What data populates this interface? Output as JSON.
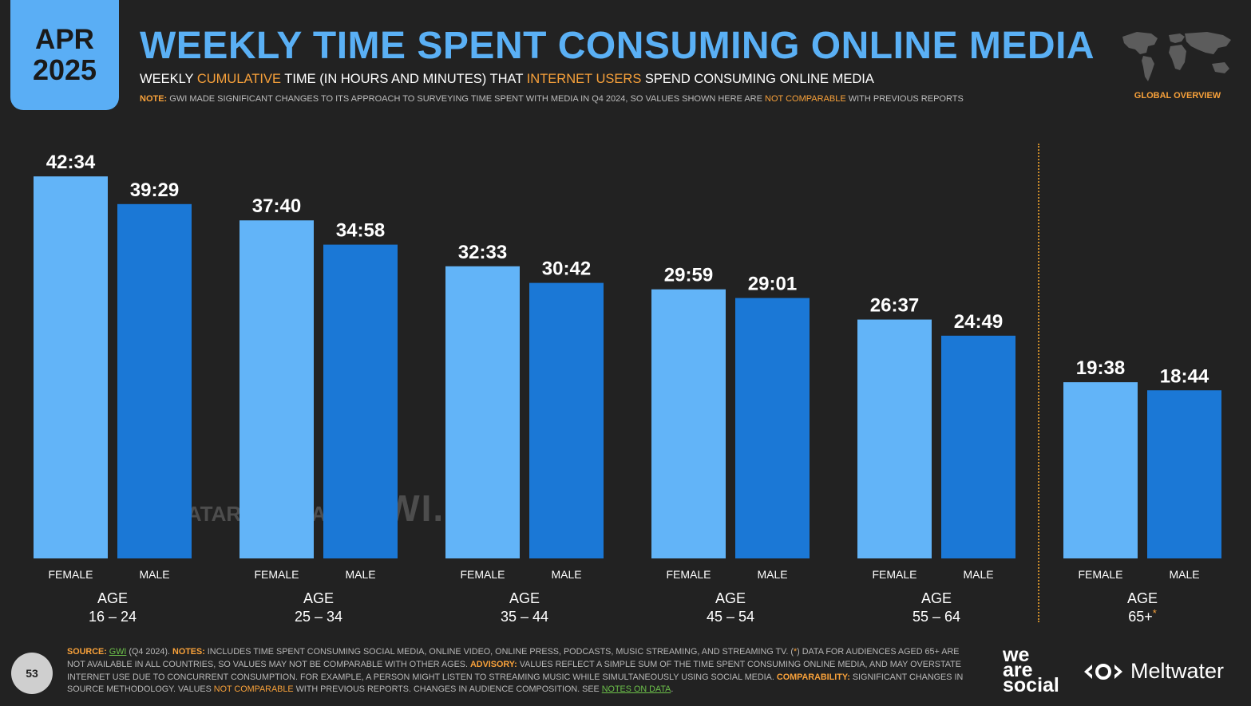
{
  "header": {
    "date_month": "APR",
    "date_year": "2025",
    "title": "WEEKLY TIME SPENT CONSUMING ONLINE MEDIA",
    "subtitle_1": "WEEKLY ",
    "subtitle_2": "CUMULATIVE",
    "subtitle_3": " TIME (IN HOURS AND MINUTES) THAT ",
    "subtitle_4": "INTERNET USERS",
    "subtitle_5": " SPEND CONSUMING ONLINE MEDIA",
    "note_label": "NOTE:",
    "note_1": " GWI MADE SIGNIFICANT CHANGES TO ITS APPROACH TO SURVEYING TIME SPENT WITH MEDIA IN Q4 2024, SO VALUES SHOWN HERE ARE ",
    "note_2": "NOT COMPARABLE",
    "note_3": " WITH PREVIOUS REPORTS",
    "global_overview": "GLOBAL OVERVIEW"
  },
  "chart_data": {
    "type": "bar",
    "unit": "hours:minutes",
    "groups": [
      {
        "age_label": "AGE",
        "range": "16 – 24",
        "female": "42:34",
        "male": "39:29",
        "female_value": 42.567,
        "male_value": 39.483
      },
      {
        "age_label": "AGE",
        "range": "25 – 34",
        "female": "37:40",
        "male": "34:58",
        "female_value": 37.667,
        "male_value": 34.967
      },
      {
        "age_label": "AGE",
        "range": "35 – 44",
        "female": "32:33",
        "male": "30:42",
        "female_value": 32.55,
        "male_value": 30.7
      },
      {
        "age_label": "AGE",
        "range": "45 – 54",
        "female": "29:59",
        "male": "29:01",
        "female_value": 29.983,
        "male_value": 29.017
      },
      {
        "age_label": "AGE",
        "range": "55 – 64",
        "female": "26:37",
        "male": "24:49",
        "female_value": 26.617,
        "male_value": 24.817
      },
      {
        "age_label": "AGE",
        "range": "65+",
        "range_mark": "*",
        "female": "19:38",
        "male": "18:44",
        "female_value": 19.633,
        "male_value": 18.733
      }
    ],
    "category_labels": {
      "female": "FEMALE",
      "male": "MALE"
    },
    "colors": {
      "female": "#62b4f8",
      "male": "#1b78d6"
    }
  },
  "watermark": {
    "datareportal": "DATAREPORTAL",
    "gwi": "GWI."
  },
  "footer": {
    "page_number": "53",
    "source_label": "SOURCE:",
    "source_gwi": "GWI",
    "source_1": " (Q4 2024). ",
    "notes_label": "NOTES:",
    "notes_1": " INCLUDES TIME SPENT CONSUMING SOCIAL MEDIA, ONLINE VIDEO, ONLINE PRESS, PODCASTS, MUSIC STREAMING, AND STREAMING TV. (",
    "notes_star": "*",
    "notes_2": ") DATA FOR AUDIENCES AGED 65+ ARE NOT AVAILABLE IN ALL COUNTRIES, SO VALUES MAY NOT BE COMPARABLE WITH OTHER AGES. ",
    "advisory_label": "ADVISORY:",
    "advisory_1": " VALUES REFLECT A SIMPLE SUM OF THE TIME SPENT CONSUMING ONLINE MEDIA, AND MAY OVERSTATE INTERNET USE DUE TO CONCURRENT CONSUMPTION. FOR EXAMPLE, A PERSON MIGHT LISTEN TO STREAMING MUSIC WHILE SIMULTANEOUSLY USING SOCIAL MEDIA. ",
    "comparability_label": "COMPARABILITY:",
    "comparability_1": " SIGNIFICANT CHANGES IN SOURCE METHODOLOGY. VALUES ",
    "not_comparable": "NOT COMPARABLE",
    "comparability_2": " WITH PREVIOUS REPORTS. CHANGES IN AUDIENCE COMPOSITION. SEE ",
    "notes_on_data": "NOTES ON DATA",
    "period": ".",
    "we": "we",
    "are": "are",
    "social": "social",
    "meltwater": "Meltwater"
  }
}
